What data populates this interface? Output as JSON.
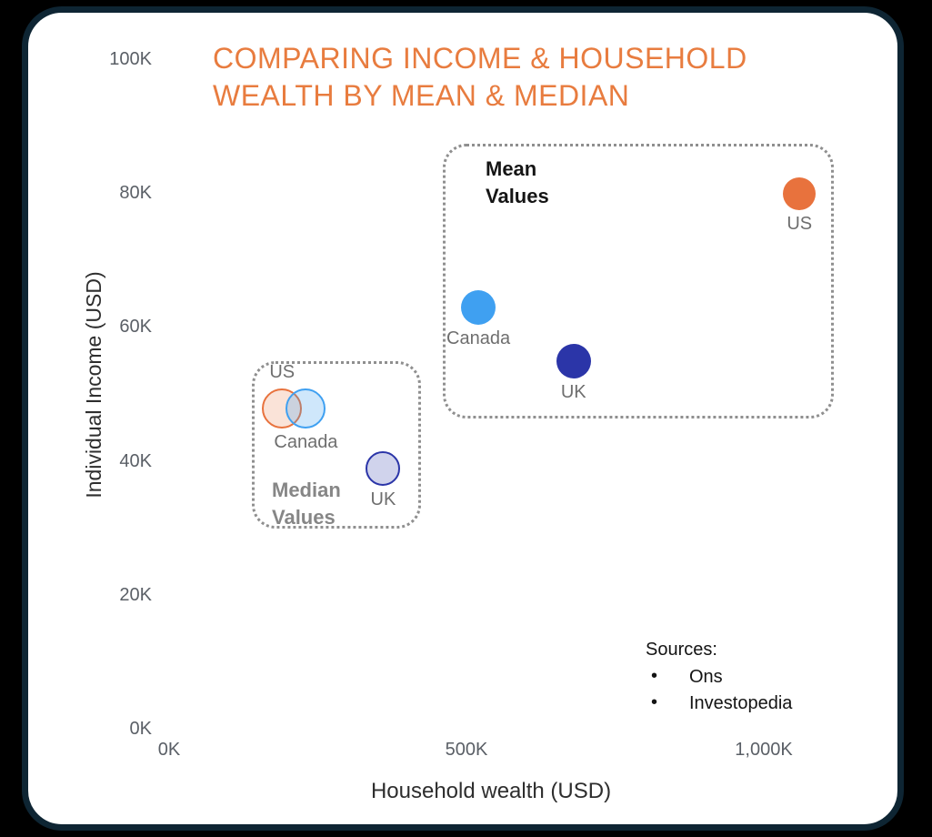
{
  "frame": {
    "background_color": "#000000",
    "panel_color": "#FFFFFF",
    "panel_border_color": "#0E2533"
  },
  "title": {
    "lines": [
      "COMPARING INCOME & HOUSEHOLD",
      "WEALTH BY MEAN & MEDIAN"
    ],
    "color": "#E87C3F"
  },
  "sources": {
    "heading": "Sources:",
    "items": [
      "Ons",
      "Investopedia"
    ]
  },
  "chart_data": {
    "type": "scatter",
    "title": "COMPARING INCOME & HOUSEHOLD WEALTH BY MEAN & MEDIAN",
    "xlabel": "Household wealth (USD)",
    "ylabel": "Individual Income (USD)",
    "xlim": [
      0,
      1000
    ],
    "ylim": [
      0,
      100
    ],
    "grid": false,
    "legend": "none",
    "x_ticks": [
      {
        "label": "0K",
        "value": 0
      },
      {
        "label": "500K",
        "value": 500
      },
      {
        "label": "1,000K",
        "value": 1000
      }
    ],
    "y_ticks": [
      {
        "label": "100K",
        "value": 100
      },
      {
        "label": "80K",
        "value": 80
      },
      {
        "label": "60K",
        "value": 60
      },
      {
        "label": "40K",
        "value": 40
      },
      {
        "label": "20K",
        "value": 20
      },
      {
        "label": "0K",
        "value": 0
      }
    ],
    "groups": [
      {
        "id": "mean",
        "label": "Mean Values",
        "label_color": "#151515",
        "box_style": "dotted"
      },
      {
        "id": "median",
        "label": "Median Values",
        "label_color": "#868686",
        "box_style": "dotted"
      }
    ],
    "points": [
      {
        "country": "US",
        "group": "mean",
        "wealth_k": 1060,
        "income_k": 80,
        "color": "#E8723D",
        "fill": "#E8723D",
        "style": "solid",
        "radius_px": 18,
        "label_pos": "below"
      },
      {
        "country": "Canada",
        "group": "mean",
        "wealth_k": 520,
        "income_k": 63,
        "color": "#3FA0F1",
        "fill": "#3FA0F1",
        "style": "solid",
        "radius_px": 19,
        "label_pos": "below"
      },
      {
        "country": "UK",
        "group": "mean",
        "wealth_k": 680,
        "income_k": 55,
        "color": "#2B35A8",
        "fill": "#2B35A8",
        "style": "solid",
        "radius_px": 19,
        "label_pos": "below"
      },
      {
        "country": "US",
        "group": "median",
        "wealth_k": 190,
        "income_k": 48,
        "color": "#E8723D",
        "fill": "rgba(232,114,61,0.20)",
        "style": "outline",
        "radius_px": 22,
        "label_pos": "above"
      },
      {
        "country": "Canada",
        "group": "median",
        "wealth_k": 230,
        "income_k": 48,
        "color": "#3FA0F1",
        "fill": "rgba(63,160,241,0.25)",
        "style": "outline",
        "radius_px": 22,
        "label_pos": "below"
      },
      {
        "country": "UK",
        "group": "median",
        "wealth_k": 360,
        "income_k": 39,
        "color": "#2B35A8",
        "fill": "rgba(43,53,168,0.22)",
        "style": "outline",
        "radius_px": 19,
        "label_pos": "below"
      }
    ]
  }
}
